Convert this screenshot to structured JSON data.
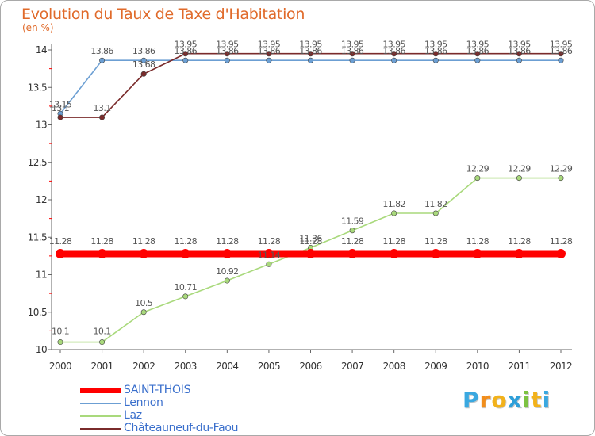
{
  "header": {
    "title": "Evolution du Taux de Taxe d'Habitation",
    "unit": "(en %)"
  },
  "chart_data": {
    "type": "line",
    "title": "Evolution du Taux de Taxe d'Habitation",
    "ylabel": "(en %)",
    "xlabel": "",
    "x": [
      "2000",
      "2001",
      "2002",
      "2003",
      "2004",
      "2005",
      "2006",
      "2007",
      "2008",
      "2009",
      "2010",
      "2011",
      "2012"
    ],
    "ylim": [
      10,
      14
    ],
    "yticks": [
      "10",
      "10.5",
      "11",
      "11.5",
      "12",
      "12.5",
      "13",
      "13.5",
      "14"
    ],
    "grid": false,
    "legend_position": "bottom-left",
    "series": [
      {
        "name": "SAINT-THOIS",
        "color": "#ff0000",
        "values": [
          11.28,
          11.28,
          11.28,
          11.28,
          11.28,
          11.28,
          11.28,
          11.28,
          11.28,
          11.28,
          11.28,
          11.28,
          11.28
        ],
        "labels": [
          "11.28",
          "11.28",
          "11.28",
          "11.28",
          "11.28",
          "11.28",
          "11.28",
          "11.28",
          "11.28",
          "11.28",
          "11.28",
          "11.28",
          "11.28"
        ]
      },
      {
        "name": "Lennon",
        "color": "#6c9fd3",
        "values": [
          13.15,
          13.86,
          13.86,
          13.86,
          13.86,
          13.86,
          13.86,
          13.86,
          13.86,
          13.86,
          13.86,
          13.86,
          13.86
        ],
        "labels": [
          "13.15",
          "13.86",
          "13.86",
          "13.86",
          "13.86",
          "13.86",
          "13.86",
          "13.86",
          "13.86",
          "13.86",
          "13.86",
          "13.86",
          "13.86"
        ]
      },
      {
        "name": "Laz",
        "color": "#a9d97c",
        "values": [
          10.1,
          10.1,
          10.5,
          10.71,
          10.92,
          11.14,
          11.36,
          11.59,
          11.82,
          11.82,
          12.29,
          12.29,
          12.29
        ],
        "labels": [
          "10.1",
          "10.1",
          "10.5",
          "10.71",
          "10.92",
          "11.14",
          "11.36",
          "11.59",
          "11.82",
          "11.82",
          "12.29",
          "12.29",
          "12.29"
        ]
      },
      {
        "name": "Châteauneuf-du-Faou",
        "color": "#7a2b2b",
        "values": [
          13.1,
          13.1,
          13.68,
          13.95,
          13.95,
          13.95,
          13.95,
          13.95,
          13.95,
          13.95,
          13.95,
          13.95,
          13.95
        ],
        "labels": [
          "13.1",
          "13.1",
          "13.68",
          "13.95",
          "13.95",
          "13.95",
          "13.95",
          "13.95",
          "13.95",
          "13.95",
          "13.95",
          "13.95",
          "13.95"
        ]
      }
    ]
  },
  "logo": {
    "letters": [
      "P",
      "r",
      "o",
      "x",
      "i",
      "t",
      "i"
    ],
    "colors": [
      "#3aa8e0",
      "#f28e1c",
      "#f2b21c",
      "#2d9fd9",
      "#7cc242",
      "#f2b21c",
      "#3aa8e0"
    ]
  }
}
